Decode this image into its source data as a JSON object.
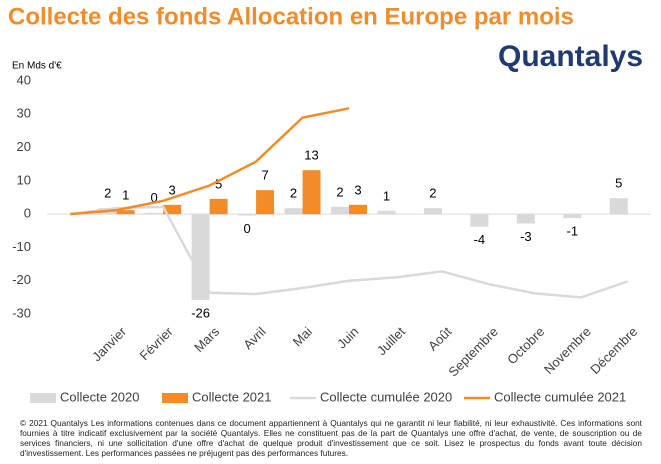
{
  "chart_data": {
    "type": "bar",
    "title": "Collecte des fonds Allocation en Europe par mois",
    "y_label": "En Mds d'€",
    "logo": "Quantalys",
    "categories": [
      null,
      "Janvier",
      "Février",
      "Mars",
      "Avril",
      "Mai",
      "Juin",
      "Juillet",
      "Août",
      "Septembre",
      "Octobre",
      "Novembre",
      "Décembre"
    ],
    "series": [
      {
        "name": "Collecte 2020",
        "type": "bar",
        "color": "#d9d9d9",
        "values": [
          null,
          1.8,
          0.4,
          -25.8,
          -0.4,
          1.8,
          2.2,
          1.0,
          1.8,
          -3.8,
          -2.8,
          -1.2,
          4.8
        ],
        "value_labels": [
          null,
          "2",
          "0",
          "-26",
          "0",
          "2",
          "2",
          "1",
          "2",
          "-4",
          "-3",
          "-1",
          "5"
        ]
      },
      {
        "name": "Collecte 2021",
        "type": "bar",
        "color": "#f28c28",
        "values": [
          null,
          1.2,
          2.8,
          4.6,
          7.2,
          13.2,
          2.8,
          null,
          null,
          null,
          null,
          null,
          null
        ],
        "value_labels": [
          null,
          "1",
          "3",
          "5",
          "7",
          "13",
          "3",
          null,
          null,
          null,
          null,
          null,
          null
        ]
      },
      {
        "name": "Collecte cumulée 2020",
        "type": "line",
        "color": "#d9d9d9",
        "values": [
          0,
          1.8,
          2.2,
          -23.6,
          -24,
          -22.2,
          -20,
          -19,
          -17.2,
          -21,
          -23.8,
          -25,
          -20.2
        ]
      },
      {
        "name": "Collecte cumulée 2021",
        "type": "line",
        "color": "#f28c28",
        "values": [
          0,
          1.2,
          4,
          8.6,
          15.8,
          29,
          31.8,
          null,
          null,
          null,
          null,
          null,
          null
        ]
      }
    ],
    "ylim": [
      -30,
      40
    ],
    "yticks": [
      -30,
      -20,
      -10,
      0,
      10,
      20,
      30,
      40
    ],
    "grid": false,
    "legend": "bottom",
    "footer": "© 2021 Quantalys Les informations contenues dans ce document appartiennent à Quantalys qui ne garantit ni leur fiabilité, ni leur exhaustivité. Ces informations sont fournies à titre indicatif exclusivement par la société Quantalys. Elles ne constituent pas de la part de Quantalys une offre d'achat, de vente, de souscription ou de services financiers, ni une sollicitation d'une offre d'achat de quelque produit d'investissement que ce soit. Lisez le prospectus du fonds avant toute décision d'investissement. Les performances passées ne préjugent pas des performances futures."
  }
}
